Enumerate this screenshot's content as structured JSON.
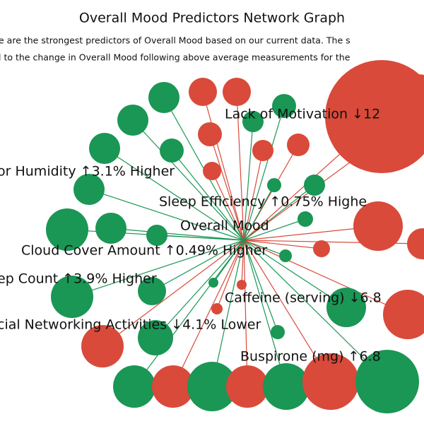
{
  "header": {
    "title": "Overall Mood Predictors Network Graph",
    "subtitle_lines": [
      "e are the strongest predictors of Overall Mood based on our current data. The s",
      "l to the change in Overall Mood following above average measurements for the"
    ]
  },
  "center": {
    "label": "Overall Mood"
  },
  "nodes": [
    {
      "label": "Lack of Motivation ↓12"
    },
    {
      "label": "or Humidity ↑3.1% Higher"
    },
    {
      "label": "Sleep Efficiency ↑0.75% Highe"
    },
    {
      "label": "Cloud Cover Amount ↑0.49% Higher"
    },
    {
      "label": "ep Count ↑3.9% Higher"
    },
    {
      "label": "Caffeine (serving) ↓6.8"
    },
    {
      "label": "cial Networking Activities ↓4.1% Lower"
    },
    {
      "label": "Buspirone (mg) ↑6.8"
    }
  ]
}
